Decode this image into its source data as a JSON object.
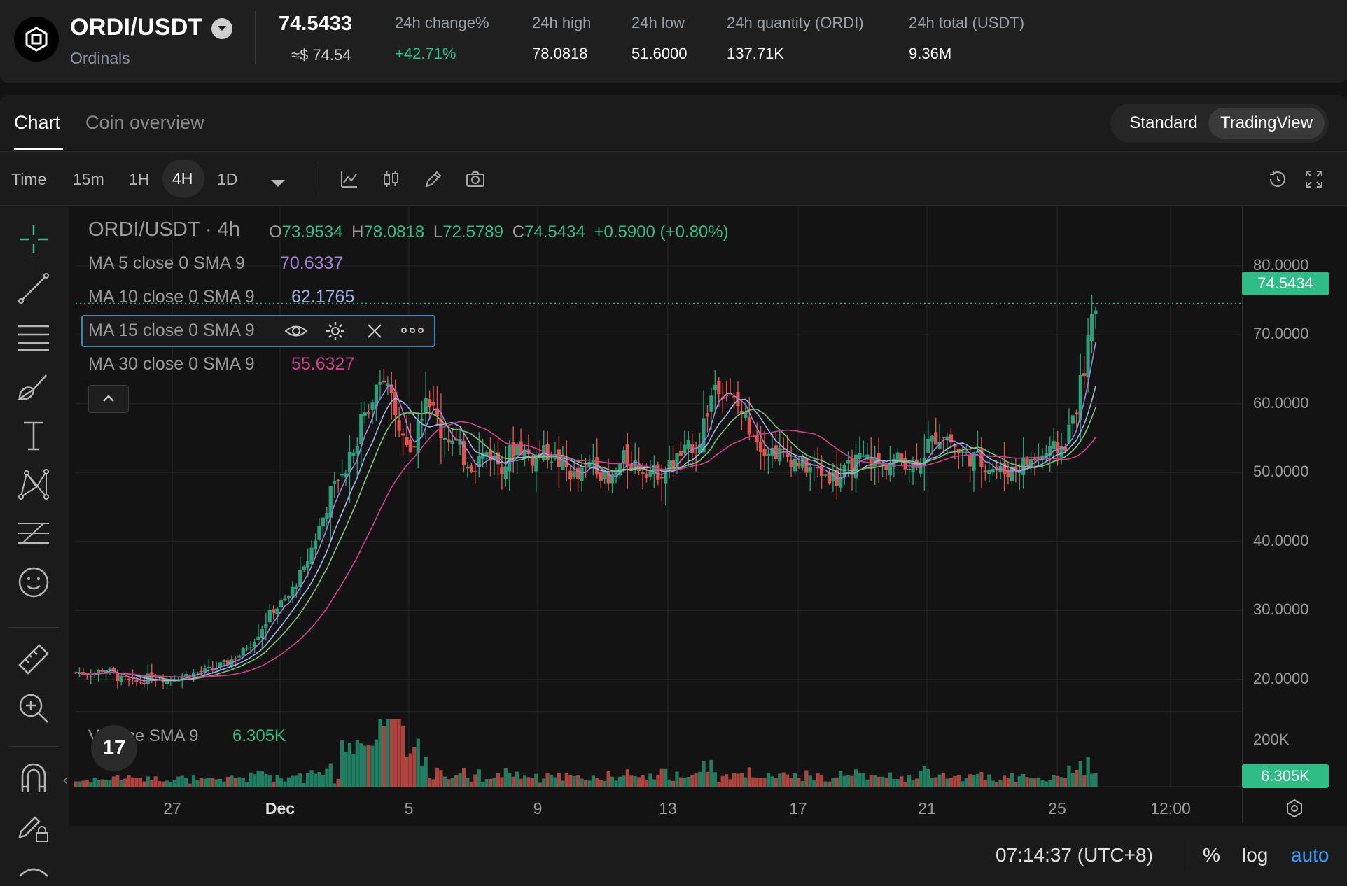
{
  "header": {
    "pair": "ORDI/USDT",
    "coin_name": "Ordinals",
    "last_price": "74.5433",
    "last_price_usd": "≈$ 74.54",
    "stats": [
      {
        "label": "24h change%",
        "value": "+42.71%"
      },
      {
        "label": "24h high",
        "value": "78.0818"
      },
      {
        "label": "24h low",
        "value": "51.6000"
      },
      {
        "label": "24h quantity (ORDI)",
        "value": "137.71K"
      },
      {
        "label": "24h total (USDT)",
        "value": "9.36M"
      }
    ]
  },
  "tabs": {
    "chart": "Chart",
    "overview": "Coin overview"
  },
  "view_toggle": {
    "standard": "Standard",
    "tradingview": "TradingView",
    "selected": "TradingView"
  },
  "toolbar": {
    "time": "Time",
    "intervals": [
      "15m",
      "1H",
      "4H",
      "1D"
    ],
    "selected": "4H"
  },
  "legend": {
    "title": "ORDI/USDT · 4h",
    "ohlc": {
      "o_label": "O",
      "o": "73.9534",
      "h_label": "H",
      "h": "78.0818",
      "l_label": "L",
      "l": "72.5789",
      "c_label": "C",
      "c": "74.5434",
      "change": "+0.5900 (+0.80%)"
    },
    "ma5": {
      "label": "MA 5 close 0 SMA 9",
      "value": "70.6337",
      "color": "#a77ed6"
    },
    "ma10": {
      "label": "MA 10 close 0 SMA 9",
      "value": "62.1765",
      "color": "#9ab4e8"
    },
    "ma15": {
      "label": "MA 15 close 0 SMA 9"
    },
    "ma30": {
      "label": "MA 30 close 0 SMA 9",
      "value": "55.6327",
      "color": "#d13d8b"
    },
    "volume": {
      "label": "Volume SMA 9",
      "value": "6.305K"
    }
  },
  "price_axis": {
    "ticks": [
      "80.0000",
      "70.0000",
      "60.0000",
      "50.0000",
      "40.0000",
      "30.0000",
      "20.0000"
    ],
    "current": "74.5434",
    "volume_tick": "200K",
    "volume_current": "6.305K"
  },
  "time_axis": {
    "ticks": [
      "27",
      "Dec",
      "5",
      "9",
      "13",
      "17",
      "21",
      "25",
      "12:00"
    ]
  },
  "footer": {
    "clock": "07:14:37 (UTC+8)",
    "percent": "%",
    "log": "log",
    "auto": "auto"
  },
  "colors": {
    "up": "#26a17b",
    "down": "#e0544b",
    "accent": "#2ebd85",
    "auto": "#3b9cf5"
  },
  "chart_data": {
    "type": "candlestick",
    "title": "ORDI/USDT · 4h",
    "ylim": [
      15,
      83
    ],
    "x_ticks": [
      "27",
      "Dec",
      "5",
      "9",
      "13",
      "17",
      "21",
      "25",
      "12:00"
    ],
    "y_ticks": [
      20,
      30,
      40,
      50,
      60,
      70,
      80
    ],
    "last_price": 74.5434,
    "close_path": [
      [
        0,
        21
      ],
      [
        4,
        20.8
      ],
      [
        8,
        21.5
      ],
      [
        12,
        20
      ],
      [
        16,
        19.5
      ],
      [
        20,
        20.3
      ],
      [
        24,
        20
      ],
      [
        28,
        20.5
      ],
      [
        32,
        21
      ],
      [
        36,
        21.5
      ],
      [
        40,
        22.5
      ],
      [
        44,
        24
      ],
      [
        48,
        27
      ],
      [
        52,
        30
      ],
      [
        56,
        32
      ],
      [
        60,
        36
      ],
      [
        64,
        42
      ],
      [
        68,
        48
      ],
      [
        72,
        53
      ],
      [
        76,
        58
      ],
      [
        80,
        65
      ],
      [
        84,
        58
      ],
      [
        88,
        52
      ],
      [
        92,
        62
      ],
      [
        96,
        56
      ],
      [
        100,
        54
      ],
      [
        104,
        51
      ],
      [
        108,
        53
      ],
      [
        112,
        51
      ],
      [
        116,
        54
      ],
      [
        120,
        52
      ],
      [
        124,
        53
      ],
      [
        128,
        51
      ],
      [
        132,
        49
      ],
      [
        136,
        52
      ],
      [
        140,
        48
      ],
      [
        144,
        52
      ],
      [
        148,
        51
      ],
      [
        152,
        50
      ],
      [
        156,
        51
      ],
      [
        160,
        53
      ],
      [
        164,
        55
      ],
      [
        168,
        63
      ],
      [
        172,
        61
      ],
      [
        176,
        58
      ],
      [
        180,
        54
      ],
      [
        184,
        53
      ],
      [
        188,
        52
      ],
      [
        192,
        51
      ],
      [
        196,
        50
      ],
      [
        200,
        49
      ],
      [
        204,
        51
      ],
      [
        208,
        52
      ],
      [
        212,
        51
      ],
      [
        216,
        52
      ],
      [
        220,
        51
      ],
      [
        224,
        54
      ],
      [
        228,
        56
      ],
      [
        232,
        53
      ],
      [
        236,
        52
      ],
      [
        240,
        51
      ],
      [
        244,
        50
      ],
      [
        248,
        51
      ],
      [
        252,
        52
      ],
      [
        256,
        53
      ],
      [
        260,
        54
      ],
      [
        264,
        62
      ],
      [
        268,
        74.5
      ]
    ],
    "ma_series": [
      {
        "name": "MA 5 close 0 SMA 9",
        "value": 70.6337
      },
      {
        "name": "MA 10 close 0 SMA 9",
        "value": 62.1765
      },
      {
        "name": "MA 15 close 0 SMA 9"
      },
      {
        "name": "MA 30 close 0 SMA 9",
        "value": 55.6327
      }
    ],
    "volume_sma": "6.305K",
    "volume_axis_tick": "200K"
  }
}
